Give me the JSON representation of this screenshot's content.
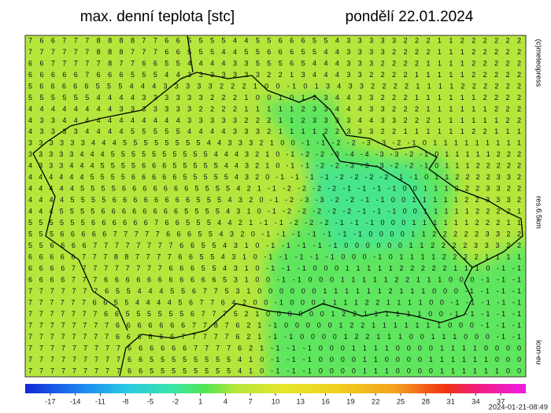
{
  "header": {
    "title": "max. denní teplota [stc]",
    "date": "pondělí 22.01.2024"
  },
  "map": {
    "rows": [
      "7 6 6 7 7 7 8 8 8 8 7 7 6 6 5 5 5 5 4 4 5 5 6 6 6 5 5 4 3 3 3 3 3 2 2 2 1 1 2 2 2 2 2 2",
      "7 7 7 7 7 7 8 8 8 7 7 7 6 6 5 5 5 4 4 5 5 6 6 6 5 5 4 4 3 3 3 3 2 2 2 2 1 1 1 2 2 2 2 2",
      "6 6 7 7 7 7 7 8 7 7 6 6 5 5 4 4 4 4 3 3 5 5 5 6 5 4 4 4 3 3 3 2 2 2 2 1 1 1 1 2 2 2 2 2",
      "6 6 6 6 6 7 6 6 6 5 5 5 4 4 3 3 3 3 3 3 3 2 2 1 3 4 4 4 3 3 2 2 2 2 1 1 1 1 1 2 2 2 2 2",
      "5 6 6 6 6 6 5 5 5 4 4 4 3 3 3 3 3 2 2 2 1 0 0 -1 0 1 3 4 3 3 2 2 2 2 1 1 1 1 2 2 2 2 2 2",
      "5 5 5 5 5 5 4 4 4 4 3 3 3 3 3 3 2 2 2 1 0 0 1 0 1 2 3 4 4 3 3 2 2 2 1 1 1 1 1 1 2 2 2 2",
      "4 4 4 4 4 4 4 4 3 3 3 3 3 3 3 2 2 2 2 1 1 1 1 1 2 3 3 4 4 4 3 3 2 2 2 1 1 1 1 1 1 2 2 2",
      "4 3 3 4 4 4 4 4 4 4 4 4 4 4 3 3 3 3 3 2 2 2 1 1 2 3 3 3 3 4 4 3 3 2 2 2 1 1 1 1 1 1 2 2",
      "4 3 3 3 3 4 4 4 4 5 5 5 5 5 4 4 4 4 3 3 3 2 1 1 1 1 2 2 3 3 3 2 2 1 1 1 1 1 1 2 2 1 1 1",
      "3 3 3 3 3 3 4 4 4 5 5 5 5 5 5 5 5 4 4 3 3 3 2 1 0 0 -1 -1 -2 -2 -3 -3 -2 -1 0 1 1 1 1 1 1 1 1 1",
      "3 3 3 3 3 4 4 4 5 5 5 5 5 5 5 5 5 5 4 4 4 3 2 1 0 -1 -2 -2 -3 -4 -4 -3 -3 -2 -1 0 1 1 1 1 1 2 2 2",
      "4 3 3 3 4 4 4 5 5 5 5 6 6 6 5 5 5 5 5 4 4 3 2 1 0 -1 -1 -2 -2 -3 -3 -3 -2 -2 -1 0 1 1 1 2 2 2 2 2",
      "4 4 4 4 4 4 5 5 5 5 6 6 6 6 6 5 5 5 5 5 4 3 2 0 -1 -1 -1 -1 -2 -2 -2 -2 -1 -1 0 1 1 2 2 2 2 3 3 2",
      "4 4 4 4 4 5 5 5 5 6 6 6 6 6 6 6 5 5 5 5 4 2 1 -1 -2 -2 -2 -2 -1 -1 -1 -1 0 0 1 1 1 2 2 2 3 3 2 2",
      "4 4 4 4 5 5 5 5 6 6 6 6 6 6 6 6 5 5 5 4 3 2 0 -1 -2 -3 -3 -2 -2 -1 -1 0 0 1 1 1 1 1 2 2 3 3 3 2",
      "4 4 4 5 5 5 5 6 6 6 6 6 6 6 6 5 5 5 5 4 3 1 0 -1 -2 -2 -2 -2 -2 -1 -1 -1 0 0 1 1 1 1 1 2 2 2 2 1",
      "5 5 5 5 5 5 6 6 6 6 6 6 7 6 6 5 5 5 4 4 2 1 -1 -1 -2 -2 -2 -1 -1 -1 0 0 0 1 1 1 1 1 1 2 2 2 1 1",
      "5 5 5 6 6 6 6 6 7 7 7 7 7 6 6 6 5 5 4 3 2 0 -1 -1 -1 -1 -1 -1 -1 0 0 0 0 1 1 2 2 2 2 2 3 3 2 2",
      "5 5 6 6 6 6 7 7 7 7 7 7 7 7 6 6 5 5 4 3 1 0 -1 -1 -1 -1 -1 0 0 0 0 0 0 1 1 2 2 2 2 3 3 3 2 2",
      "6 6 6 6 6 7 7 7 8 8 7 7 7 7 6 6 5 5 4 3 1 0 -1 -1 -1 -1 -1 0 0 0 -1 0 1 1 1 1 2 2 2 2 1 1 1 1",
      "6 6 6 6 7 7 7 7 7 7 7 7 7 6 6 6 5 5 4 3 1 0 -1 -1 -1 0 0 0 1 1 1 1 1 2 2 2 2 2 1 1 1 0 -1 -1",
      "6 6 6 6 7 7 7 6 6 6 6 6 6 6 6 6 6 6 5 3 1 0 0 -1 -1 0 0 0 1 1 1 1 1 2 2 1 1 1 0 0 0 -1 -1 -1",
      "7 7 7 7 7 7 7 6 5 5 4 4 4 5 5 6 7 7 5 3 1 0 0 0 0 0 0 1 1 1 1 1 1 2 1 1 1 0 0 0 -1 -1 -1 -1",
      "7 7 7 7 7 7 6 6 5 5 4 4 4 4 5 6 7 7 6 4 2 0 0 -1 0 0 0 1 1 1 1 2 2 1 1 1 1 0 0 -1 -1 -1 -1 -1",
      "7 7 7 7 7 7 7 6 6 5 5 5 5 5 5 6 7 7 7 5 2 1 0 0 0 0 0 0 1 2 2 1 1 1 1 1 1 0 0 -1 -1 -1 -1 -1",
      "7 7 7 7 7 7 7 7 6 6 6 6 6 6 6 7 7 8 7 6 2 1 -1 0 0 0 0 0 1 2 2 1 1 1 1 1 1 1 0 0 0 -1 -1 -1",
      "7 7 7 7 7 7 7 7 6 6 6 6 6 6 7 7 7 7 7 6 2 1 -1 -1 0 0 0 0 1 2 2 1 1 1 0 0 1 1 1 0 0 0 -1 -1",
      "7 7 7 7 7 7 7 7 7 6 6 6 6 6 6 7 7 7 7 6 2 1 -1 -1 -1 0 0 0 1 1 1 1 0 0 0 0 1 1 1 1 0 0 0 0",
      "7 7 7 7 7 7 7 7 7 6 6 5 5 5 5 5 5 5 5 4 1 0 -1 -1 -1 0 0 0 0 1 1 0 0 0 0 1 1 1 1 1 1 0 0 0",
      "7 7 7 7 7 7 7 7 7 6 6 5 5 5 5 5 5 5 5 4 1 0 -1 -1 -1 0 0 0 0 1 1 1 0 0 0 0 1 1 1 1 1 1 0 0"
    ]
  },
  "colorbar": {
    "range": [
      -20,
      40
    ],
    "ticks": [
      -17,
      -14,
      -11,
      -8,
      -5,
      -2,
      1,
      4,
      7,
      10,
      13,
      16,
      19,
      22,
      25,
      28,
      31,
      34,
      37
    ]
  },
  "credits": {
    "copyright": "(c)meteopress",
    "resolution": "res.6.5km",
    "model": "icon-eu",
    "timestamp": "2024-01-21-08:49"
  }
}
